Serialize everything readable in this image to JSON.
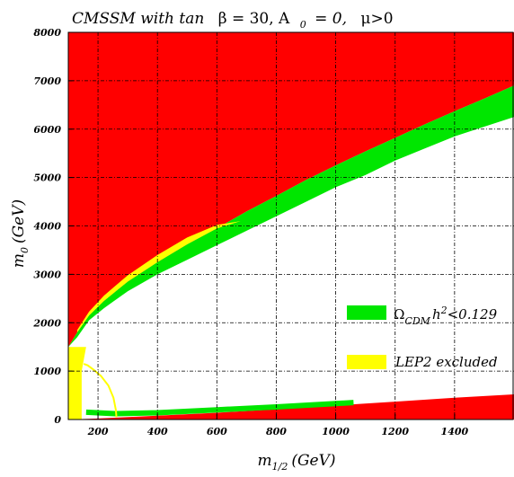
{
  "chart_data": {
    "type": "area",
    "title": {
      "prefix": "CMSSM with tan",
      "beta_part": "β = 30, A",
      "a_sub": "0",
      "after_a": "= 0,",
      "mu_part": "μ>0"
    },
    "xlabel": {
      "main": "m",
      "sub": "1/2",
      "unit": "(GeV)"
    },
    "ylabel": {
      "main": "m",
      "sub": "0",
      "unit": "(GeV)"
    },
    "xlim": [
      100,
      1600
    ],
    "ylim": [
      0,
      8000
    ],
    "xticks": [
      200,
      400,
      600,
      800,
      1000,
      1200,
      1400
    ],
    "yticks": [
      0,
      1000,
      2000,
      3000,
      4000,
      5000,
      6000,
      7000,
      8000
    ],
    "grid": true,
    "legend": {
      "placement": "right",
      "entries": [
        {
          "symbol": "Ω",
          "sub": "CDM",
          "text": "h",
          "sup": "2",
          "tail": "<0.129",
          "color": "#00e600"
        },
        {
          "text": "LEP2 excluded",
          "color": "#ffff00"
        }
      ]
    },
    "colors": {
      "excluded": "#ff0000",
      "cdm": "#00e600",
      "lep2": "#ffff00"
    },
    "series": [
      {
        "role": "excluded-upper",
        "color": "#ff0000",
        "x": [
          100,
          130,
          170,
          220,
          300,
          400,
          500,
          600,
          700,
          800,
          900,
          1000,
          1100,
          1200,
          1300,
          1400,
          1500,
          1600
        ],
        "y": [
          1500,
          1800,
          2150,
          2450,
          2850,
          3250,
          3620,
          3950,
          4300,
          4620,
          4950,
          5250,
          5540,
          5820,
          6100,
          6370,
          6630,
          6900
        ]
      },
      {
        "role": "cdm-upper-strip",
        "color": "#00e600",
        "lower_y": [
          1500,
          1700,
          2050,
          2300,
          2650,
          3000,
          3300,
          3600,
          3900,
          4200,
          4500,
          4800,
          5050,
          5350,
          5600,
          5850,
          6050,
          6250
        ],
        "upper_y": [
          1500,
          1800,
          2150,
          2450,
          2850,
          3250,
          3620,
          3950,
          4300,
          4620,
          4950,
          5250,
          5540,
          5820,
          6100,
          6370,
          6630,
          6900
        ]
      },
      {
        "role": "lep2-upper-strip",
        "color": "#ffff00",
        "x": [
          130,
          170,
          220,
          300,
          400,
          500,
          600,
          680
        ],
        "lower_y": [
          1800,
          2150,
          2450,
          2850,
          3250,
          3620,
          3950,
          4100
        ],
        "upper_y": [
          1850,
          2230,
          2560,
          2980,
          3400,
          3760,
          4020,
          4100
        ]
      },
      {
        "role": "excluded-lower",
        "color": "#ff0000",
        "x": [
          100,
          200,
          400,
          600,
          800,
          1000,
          1200,
          1400,
          1600
        ],
        "y": [
          0,
          20,
          80,
          140,
          210,
          290,
          370,
          450,
          520
        ]
      },
      {
        "role": "cdm-lower-strip",
        "color": "#00e600",
        "x": [
          160,
          260,
          400,
          600,
          800,
          1000,
          1060
        ],
        "y": [
          150,
          120,
          140,
          200,
          260,
          330,
          350
        ]
      },
      {
        "role": "lep2-left-band",
        "color": "#ffff00",
        "x": [
          100,
          160
        ],
        "y": [
          0,
          1500
        ]
      },
      {
        "role": "lep2-contour",
        "color": "#ffff00",
        "x": [
          152,
          165,
          185,
          210,
          235,
          252,
          260,
          262
        ],
        "y": [
          1150,
          1120,
          1030,
          900,
          700,
          450,
          200,
          50
        ]
      }
    ]
  }
}
